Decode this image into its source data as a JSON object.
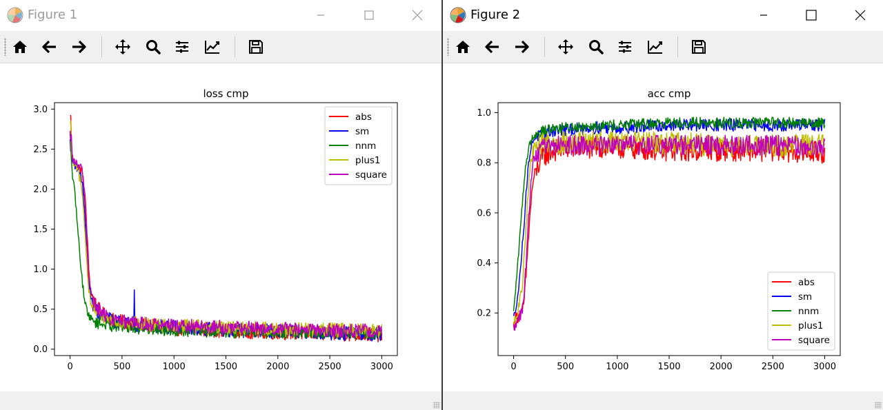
{
  "windows": [
    {
      "title": "Figure 1",
      "active": false,
      "toolbar": [
        "home-icon",
        "back-icon",
        "forward-icon",
        "pan-icon",
        "zoom-icon",
        "configure-subplots-icon",
        "edit-axis-icon",
        "save-icon"
      ]
    },
    {
      "title": "Figure 2",
      "active": true,
      "toolbar": [
        "home-icon",
        "back-icon",
        "forward-icon",
        "pan-icon",
        "zoom-icon",
        "configure-subplots-icon",
        "edit-axis-icon",
        "save-icon"
      ]
    }
  ],
  "chart_data": [
    {
      "type": "line",
      "title": "loss cmp",
      "xlabel": "",
      "ylabel": "",
      "xlim": [
        -150,
        3150
      ],
      "ylim": [
        -0.08,
        3.08
      ],
      "xticks": [
        0,
        500,
        1000,
        1500,
        2000,
        2500,
        3000
      ],
      "yticks": [
        0.0,
        0.5,
        1.0,
        1.5,
        2.0,
        2.5,
        3.0
      ],
      "ytick_labels": [
        "0.0",
        "0.5",
        "1.0",
        "1.5",
        "2.0",
        "2.5",
        "3.0"
      ],
      "grid": false,
      "legend": "top-right",
      "x": [
        0,
        20,
        50,
        80,
        100,
        120,
        150,
        180,
        200,
        250,
        300,
        400,
        500,
        750,
        1000,
        1500,
        2000,
        2500,
        3000
      ],
      "series": [
        {
          "name": "abs",
          "color": "#ff0000",
          "values": [
            2.9,
            2.4,
            2.3,
            2.28,
            2.25,
            2.2,
            1.8,
            1.0,
            0.72,
            0.55,
            0.45,
            0.38,
            0.34,
            0.3,
            0.26,
            0.23,
            0.21,
            0.19,
            0.18
          ],
          "noise": 0.09,
          "spike": [
            3,
            2.92
          ]
        },
        {
          "name": "sm",
          "color": "#0000ff",
          "values": [
            2.6,
            2.35,
            2.3,
            2.25,
            2.2,
            2.05,
            1.5,
            0.85,
            0.62,
            0.5,
            0.42,
            0.36,
            0.33,
            0.29,
            0.27,
            0.24,
            0.22,
            0.2,
            0.19
          ],
          "noise": 0.09,
          "spike": [
            620,
            0.74
          ]
        },
        {
          "name": "nnm",
          "color": "#008000",
          "values": [
            2.7,
            2.2,
            1.9,
            1.4,
            1.1,
            0.8,
            0.55,
            0.42,
            0.38,
            0.34,
            0.32,
            0.3,
            0.28,
            0.26,
            0.24,
            0.22,
            0.21,
            0.2,
            0.2
          ],
          "noise": 0.08,
          "spike": [
            0,
            2.7
          ]
        },
        {
          "name": "plus1",
          "color": "#bfbf00",
          "values": [
            2.8,
            2.35,
            2.28,
            2.2,
            2.1,
            1.9,
            1.3,
            0.75,
            0.58,
            0.48,
            0.42,
            0.37,
            0.34,
            0.31,
            0.29,
            0.27,
            0.25,
            0.24,
            0.23
          ],
          "noise": 0.09,
          "spike": [
            5,
            2.85
          ]
        },
        {
          "name": "square",
          "color": "#bf00bf",
          "values": [
            2.7,
            2.4,
            2.32,
            2.3,
            2.27,
            2.22,
            1.7,
            0.9,
            0.7,
            0.52,
            0.44,
            0.38,
            0.34,
            0.31,
            0.29,
            0.27,
            0.25,
            0.24,
            0.22
          ],
          "noise": 0.09,
          "spike": [
            10,
            2.68
          ]
        }
      ]
    },
    {
      "type": "line",
      "title": "acc cmp",
      "xlabel": "",
      "ylabel": "",
      "xlim": [
        -150,
        3150
      ],
      "ylim": [
        0.03,
        1.04
      ],
      "xticks": [
        0,
        500,
        1000,
        1500,
        2000,
        2500,
        3000
      ],
      "yticks": [
        0.2,
        0.4,
        0.6,
        0.8,
        1.0
      ],
      "ytick_labels": [
        "0.2",
        "0.4",
        "0.6",
        "0.8",
        "1.0"
      ],
      "grid": false,
      "legend": "bottom-right",
      "x": [
        0,
        20,
        50,
        80,
        100,
        120,
        150,
        180,
        200,
        250,
        300,
        400,
        500,
        750,
        1000,
        1500,
        2000,
        2500,
        3000
      ],
      "series": [
        {
          "name": "abs",
          "color": "#ff0000",
          "values": [
            0.15,
            0.18,
            0.19,
            0.2,
            0.24,
            0.35,
            0.55,
            0.7,
            0.75,
            0.8,
            0.83,
            0.85,
            0.86,
            0.86,
            0.86,
            0.85,
            0.85,
            0.85,
            0.84
          ],
          "noise": 0.045
        },
        {
          "name": "sm",
          "color": "#0000ff",
          "values": [
            0.18,
            0.22,
            0.3,
            0.45,
            0.55,
            0.68,
            0.82,
            0.88,
            0.9,
            0.91,
            0.92,
            0.93,
            0.93,
            0.94,
            0.94,
            0.95,
            0.95,
            0.95,
            0.95
          ],
          "noise": 0.025
        },
        {
          "name": "nnm",
          "color": "#008000",
          "values": [
            0.2,
            0.3,
            0.45,
            0.62,
            0.72,
            0.8,
            0.87,
            0.9,
            0.91,
            0.92,
            0.93,
            0.94,
            0.94,
            0.95,
            0.95,
            0.96,
            0.96,
            0.96,
            0.96
          ],
          "noise": 0.022
        },
        {
          "name": "plus1",
          "color": "#bfbf00",
          "values": [
            0.15,
            0.18,
            0.22,
            0.3,
            0.4,
            0.55,
            0.75,
            0.84,
            0.86,
            0.87,
            0.88,
            0.88,
            0.88,
            0.88,
            0.88,
            0.88,
            0.87,
            0.87,
            0.87
          ],
          "noise": 0.045
        },
        {
          "name": "square",
          "color": "#bf00bf",
          "values": [
            0.14,
            0.16,
            0.18,
            0.2,
            0.26,
            0.4,
            0.62,
            0.78,
            0.82,
            0.85,
            0.86,
            0.87,
            0.87,
            0.87,
            0.87,
            0.87,
            0.87,
            0.87,
            0.86
          ],
          "noise": 0.04
        }
      ]
    }
  ]
}
